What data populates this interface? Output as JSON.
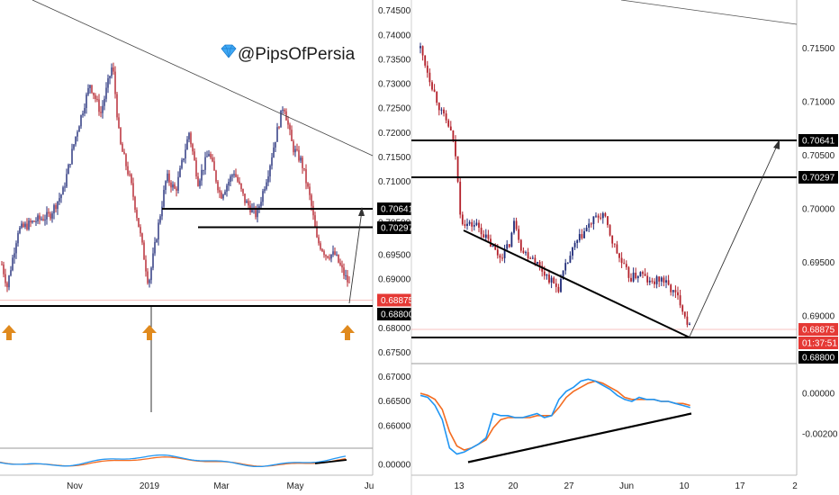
{
  "watermark": {
    "text": "@PipsOfPersia",
    "icon": "diamond-icon",
    "icon_color": "#3fa9f5"
  },
  "colors": {
    "up_candle": "#1e2a78",
    "down_candle": "#b3202a",
    "osc_blue": "#2196f3",
    "osc_orange": "#f36c21",
    "current_price": "#e53935",
    "arrow": "#e08a1e",
    "level_tag": "#000000"
  },
  "chart_data": [
    {
      "type": "candlestick",
      "panel": "left",
      "timeframe_hint": "daily",
      "x_ticks": [
        "Nov",
        "2019",
        "Mar",
        "May",
        "Ju"
      ],
      "y_ticks": [
        "0.74500",
        "0.74000",
        "0.73500",
        "0.73000",
        "0.72500",
        "0.72000",
        "0.71500",
        "0.71000",
        "0.70500",
        "0.70000",
        "0.69500",
        "0.69000",
        "0.68500",
        "0.68000",
        "0.67500",
        "0.67000",
        "0.66500",
        "0.66000"
      ],
      "ylim": [
        0.6595,
        0.7455
      ],
      "horizontal_levels": [
        {
          "value": 0.70641,
          "label": "0.70641"
        },
        {
          "value": 0.70297,
          "label": "0.70297"
        },
        {
          "value": 0.688,
          "label": "0.68800"
        }
      ],
      "current_price": {
        "value": 0.68875,
        "label": "0.68875"
      },
      "hidden_label": "0.70500",
      "trendline": {
        "from": {
          "x": "Sep",
          "y": 0.745
        },
        "to": {
          "x": "Jun",
          "y": 0.7165
        }
      },
      "projection_arrow": {
        "from_y": 0.6885,
        "to_y": 0.7064
      },
      "key_lows": [
        0.6883,
        0.6876,
        0.688
      ],
      "spike_low": 0.6683,
      "oscillator": {
        "series": [
          {
            "color": "blue"
          },
          {
            "color": "orange"
          }
        ],
        "y_ticks": [
          "0.00000"
        ]
      }
    },
    {
      "type": "candlestick",
      "panel": "right",
      "timeframe_hint": "4h",
      "x_ticks": [
        "13",
        "20",
        "27",
        "Jun",
        "10",
        "17",
        "2"
      ],
      "y_ticks": [
        "0.71500",
        "0.71000",
        "0.70500",
        "0.70000",
        "0.69500",
        "0.69000"
      ],
      "ylim": [
        0.687,
        0.7185
      ],
      "horizontal_levels": [
        {
          "value": 0.70641,
          "label": "0.70641"
        },
        {
          "value": 0.70297,
          "label": "0.70297"
        },
        {
          "value": 0.688,
          "label": "0.68800"
        }
      ],
      "current_price": {
        "value": 0.68875,
        "label": "0.68875",
        "countdown": "01:37:51"
      },
      "trendline": {
        "from": {
          "x": "14",
          "y": 0.698
        },
        "to": {
          "x": "11",
          "y": 0.6882
        }
      },
      "projection_arrow": {
        "from_y": 0.6882,
        "to_y": 0.7064
      },
      "oscillator": {
        "y_ticks": [
          "0.00000",
          "-0.00200"
        ],
        "ylim": [
          -0.0034,
          0.0011
        ],
        "x": [
          0,
          3,
          6,
          9,
          12,
          15,
          18,
          21,
          24,
          27,
          30,
          33,
          36,
          39,
          42,
          45,
          48,
          51,
          54,
          57,
          60,
          63,
          66,
          69,
          72,
          75,
          78,
          81,
          84,
          87,
          90,
          93,
          96,
          99,
          102,
          105,
          108,
          111
        ],
        "series": [
          {
            "color": "blue",
            "values": [
              -0.0001,
              -0.0002,
              -0.0006,
              -0.0013,
              -0.0027,
              -0.003,
              -0.0029,
              -0.0027,
              -0.0025,
              -0.0022,
              -0.001,
              -0.0011,
              -0.0011,
              -0.0012,
              -0.0012,
              -0.0011,
              -0.001,
              -0.0012,
              -0.0011,
              -0.0003,
              0.0001,
              0.0003,
              0.0006,
              0.0007,
              0.0006,
              0.0004,
              0.0002,
              -0.0001,
              -0.0003,
              -0.0004,
              -0.0002,
              -0.0003,
              -0.0003,
              -0.0004,
              -0.0004,
              -0.0005,
              -0.0006,
              -0.0007
            ]
          },
          {
            "color": "orange",
            "values": [
              0.0,
              -0.0001,
              -0.0003,
              -0.0008,
              -0.0019,
              -0.0026,
              -0.0028,
              -0.0027,
              -0.0025,
              -0.0023,
              -0.0017,
              -0.0013,
              -0.0012,
              -0.0012,
              -0.0012,
              -0.0012,
              -0.0011,
              -0.0011,
              -0.0011,
              -0.0007,
              -0.0002,
              0.0001,
              0.0003,
              0.0005,
              0.0006,
              0.0005,
              0.0003,
              0.0001,
              -0.0002,
              -0.0003,
              -0.0003,
              -0.0003,
              -0.0003,
              -0.0004,
              -0.0004,
              -0.0005,
              -0.0005,
              -0.0006
            ]
          }
        ],
        "trendline": {
          "from_y": -0.0034,
          "to_y": -0.001
        }
      }
    }
  ]
}
